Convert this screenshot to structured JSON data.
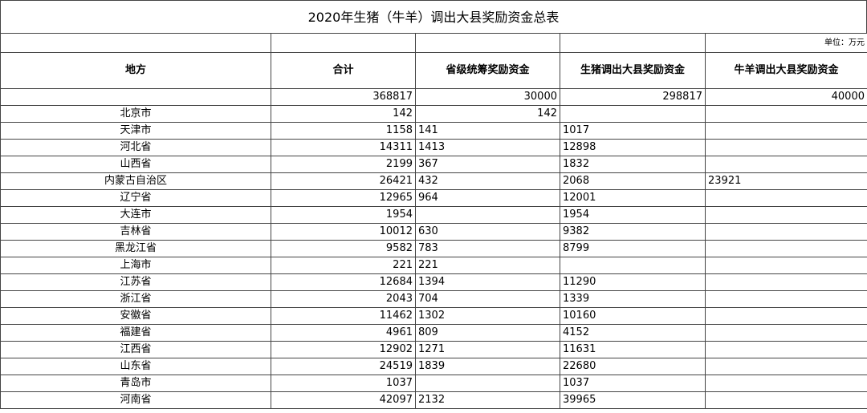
{
  "title": "2020年生猪（牛羊）调出大县奖励资金总表",
  "unit": "单位：万元",
  "headers": [
    "地方",
    "合计",
    "省级统筹奖励资金",
    "生猪调出大县奖励资金",
    "牛羊调出大县奖励资金"
  ],
  "total": {
    "sum": "368817",
    "provincial": "30000",
    "pig": "298817",
    "cattle": "40000"
  },
  "rows": [
    {
      "region": "北京市",
      "sum": "142",
      "provincial": "142",
      "pig": "",
      "cattle": "",
      "prov_align": "right"
    },
    {
      "region": "天津市",
      "sum": "1158",
      "provincial": "141",
      "pig": "1017",
      "cattle": ""
    },
    {
      "region": "河北省",
      "sum": "14311",
      "provincial": "1413",
      "pig": "12898",
      "cattle": ""
    },
    {
      "region": "山西省",
      "sum": "2199",
      "provincial": "367",
      "pig": "1832",
      "cattle": ""
    },
    {
      "region": "内蒙古自治区",
      "sum": "26421",
      "provincial": "432",
      "pig": "2068",
      "cattle": "23921"
    },
    {
      "region": "辽宁省",
      "sum": "12965",
      "provincial": "964",
      "pig": "12001",
      "cattle": ""
    },
    {
      "region": "大连市",
      "sum": "1954",
      "provincial": "",
      "pig": "1954",
      "cattle": ""
    },
    {
      "region": "吉林省",
      "sum": "10012",
      "provincial": "630",
      "pig": "9382",
      "cattle": ""
    },
    {
      "region": "黑龙江省",
      "sum": "9582",
      "provincial": "783",
      "pig": "8799",
      "cattle": ""
    },
    {
      "region": "上海市",
      "sum": "221",
      "provincial": "221",
      "pig": "",
      "cattle": ""
    },
    {
      "region": "江苏省",
      "sum": "12684",
      "provincial": "1394",
      "pig": "11290",
      "cattle": ""
    },
    {
      "region": "浙江省",
      "sum": "2043",
      "provincial": "704",
      "pig": "1339",
      "cattle": ""
    },
    {
      "region": "安徽省",
      "sum": "11462",
      "provincial": "1302",
      "pig": "10160",
      "cattle": ""
    },
    {
      "region": "福建省",
      "sum": "4961",
      "provincial": "809",
      "pig": "4152",
      "cattle": ""
    },
    {
      "region": "江西省",
      "sum": "12902",
      "provincial": "1271",
      "pig": "11631",
      "cattle": ""
    },
    {
      "region": "山东省",
      "sum": "24519",
      "provincial": "1839",
      "pig": "22680",
      "cattle": ""
    },
    {
      "region": "青岛市",
      "sum": "1037",
      "provincial": "",
      "pig": "1037",
      "cattle": ""
    },
    {
      "region": "河南省",
      "sum": "42097",
      "provincial": "2132",
      "pig": "39965",
      "cattle": ""
    }
  ]
}
